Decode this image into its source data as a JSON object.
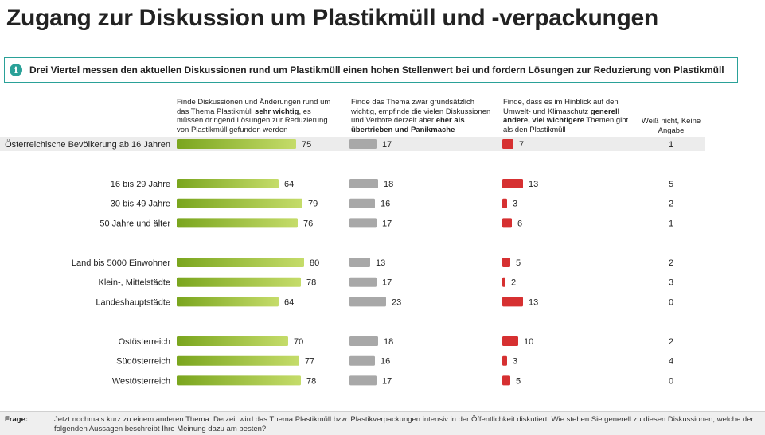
{
  "title": "Zugang zur Diskussion um Plastikmüll und -verpackungen",
  "info": {
    "icon": "info-icon",
    "text": "Drei Viertel messen den aktuellen Diskussionen rund um Plastikmüll einen hohen Stellenwert bei und fordern Lösungen zur Reduzierung von Plastikmüll"
  },
  "columns": {
    "head_1": {
      "pre": "Finde Diskussionen und Änderungen rund um das Thema Plastikmüll ",
      "bold": "sehr wichtig",
      "post": ", es müssen dringend Lösungen zur Reduzierung von Plastikmüll gefunden werden"
    },
    "head_2": {
      "pre": "Finde das Thema zwar grundsätzlich wichtig, empfinde die vielen Diskussionen und Verbote derzeit aber ",
      "bold": "eher als übertrieben und Panikmache",
      "post": ""
    },
    "head_3": {
      "pre": "Finde, dass es im Hinblick auf den Umwelt- und Klimaschutz ",
      "bold": "generell andere, viel wichtigere",
      "post": " Themen gibt als den Plastikmüll"
    },
    "head_4": "Weiß nicht, Keine Angabe"
  },
  "colors": {
    "series_1_start": "#7aa51e",
    "series_1_end": "#c5dc6a",
    "series_2": "#a8a8a8",
    "series_3": "#d63031",
    "highlight_row": "#ececec",
    "accent": "#2aa198"
  },
  "chart_data": {
    "type": "bar",
    "orientation": "horizontal",
    "categories": [
      "Österreichische Bevölkerung ab 16 Jahren",
      "16 bis 29 Jahre",
      "30 bis 49 Jahre",
      "50 Jahre und älter",
      "Land bis 5000 Einwohner",
      "Klein-, Mittelstädte",
      "Landeshauptstädte",
      "Ostösterreich",
      "Südösterreich",
      "Westösterreich"
    ],
    "groups": [
      [
        0
      ],
      [
        1,
        2,
        3
      ],
      [
        4,
        5,
        6
      ],
      [
        7,
        8,
        9
      ]
    ],
    "series": [
      {
        "values": [
          75,
          64,
          79,
          76,
          80,
          78,
          64,
          70,
          77,
          78
        ]
      },
      {
        "values": [
          17,
          18,
          16,
          17,
          13,
          17,
          23,
          18,
          16,
          17
        ]
      },
      {
        "values": [
          7,
          13,
          3,
          6,
          5,
          2,
          13,
          10,
          3,
          5
        ]
      },
      {
        "values": [
          1,
          5,
          2,
          1,
          2,
          3,
          0,
          2,
          4,
          0
        ]
      }
    ],
    "unit": "%",
    "highlighted_category": 0
  },
  "footer": {
    "label": "Frage:",
    "text": "Jetzt nochmals kurz zu einem anderen Thema. Derzeit wird das Thema Plastikmüll bzw. Plastikverpackungen intensiv in der Öffentlichkeit diskutiert. Wie stehen Sie generell zu diesen Diskussionen, welche der folgenden Aussagen beschreibt Ihre Meinung dazu am besten?"
  }
}
